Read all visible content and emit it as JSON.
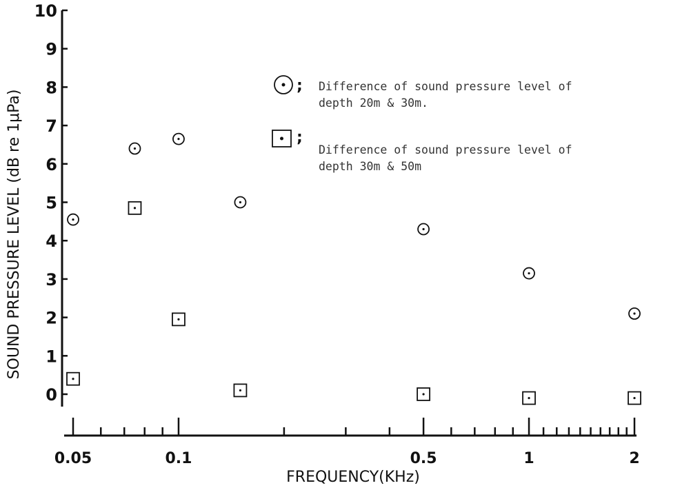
{
  "chart_data": {
    "type": "scatter",
    "xlabel": "FREQUENCY(KHz)",
    "ylabel": "SOUND PRESSURE LEVEL (dB re 1μPa)",
    "xscale": "log",
    "xlim": [
      0.05,
      2
    ],
    "ylim": [
      0,
      10
    ],
    "x_ticks": [
      0.05,
      0.1,
      0.5,
      1,
      2
    ],
    "x_tick_labels": [
      "0.05",
      "0.1",
      "0.5",
      "1",
      "2"
    ],
    "y_ticks": [
      0,
      1,
      2,
      3,
      4,
      5,
      6,
      7,
      8,
      9,
      10
    ],
    "y_tick_labels": [
      "0",
      "1",
      "2",
      "3",
      "4",
      "5",
      "6",
      "7",
      "8",
      "9",
      "10"
    ],
    "grid": false,
    "legend_position": "top-right",
    "series": [
      {
        "marker": "circle-dot",
        "legend_text": "Difference of sound pressure level of depth 20m & 30m.",
        "points": [
          {
            "x": 0.05,
            "y": 4.55
          },
          {
            "x": 0.075,
            "y": 6.4
          },
          {
            "x": 0.1,
            "y": 6.65
          },
          {
            "x": 0.15,
            "y": 5.0
          },
          {
            "x": 0.5,
            "y": 4.3
          },
          {
            "x": 1,
            "y": 3.15
          },
          {
            "x": 2,
            "y": 2.1
          }
        ]
      },
      {
        "marker": "square-dot",
        "legend_text": "Difference of sound pressure level of depth 30m & 50m",
        "points": [
          {
            "x": 0.05,
            "y": 0.4
          },
          {
            "x": 0.075,
            "y": 4.85
          },
          {
            "x": 0.1,
            "y": 1.95
          },
          {
            "x": 0.15,
            "y": 0.1
          },
          {
            "x": 0.5,
            "y": 0.0
          },
          {
            "x": 1,
            "y": -0.1
          },
          {
            "x": 2,
            "y": -0.1
          }
        ]
      }
    ],
    "legend": [
      {
        "line1": "Difference of sound pressure level of",
        "line2": "depth 20m & 30m."
      },
      {
        "line1": "Difference of sound pressure level of",
        "line2": "depth 30m & 50m"
      }
    ]
  }
}
